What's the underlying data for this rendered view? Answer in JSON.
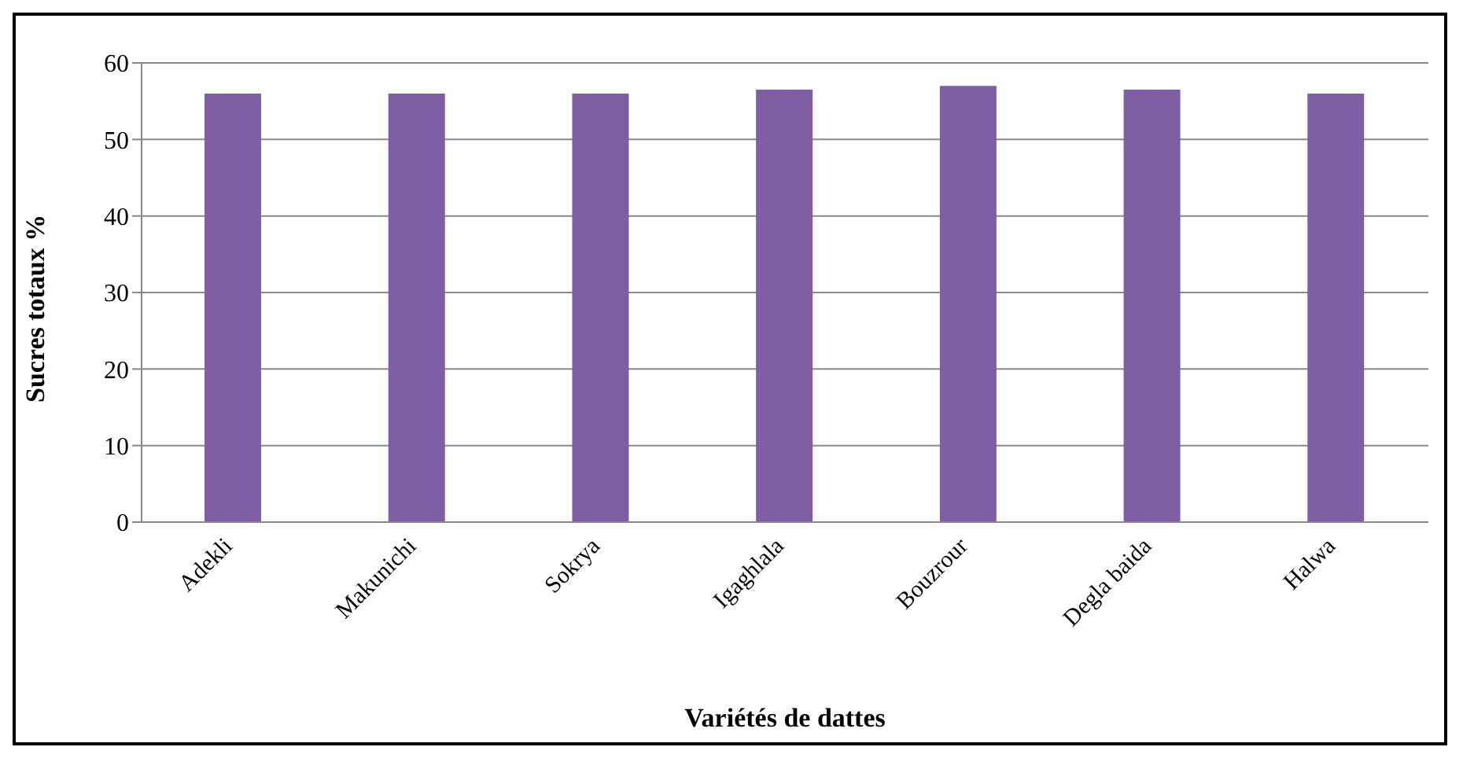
{
  "chart_data": {
    "type": "bar",
    "xlabel": "Variétés de dattes",
    "ylabel": "Sucres totaux %",
    "categories": [
      "Adekli",
      "Makunichi",
      "Sokrya",
      "Igaghlala",
      "Bouzrour",
      "Degla baida",
      "Halwa"
    ],
    "values": [
      56,
      56,
      56,
      56.5,
      57,
      56.5,
      56
    ],
    "color": "#7f5fa3",
    "ylim": [
      0,
      60
    ],
    "yticks": [
      0,
      10,
      20,
      30,
      40,
      50,
      60
    ],
    "grid": "y"
  }
}
